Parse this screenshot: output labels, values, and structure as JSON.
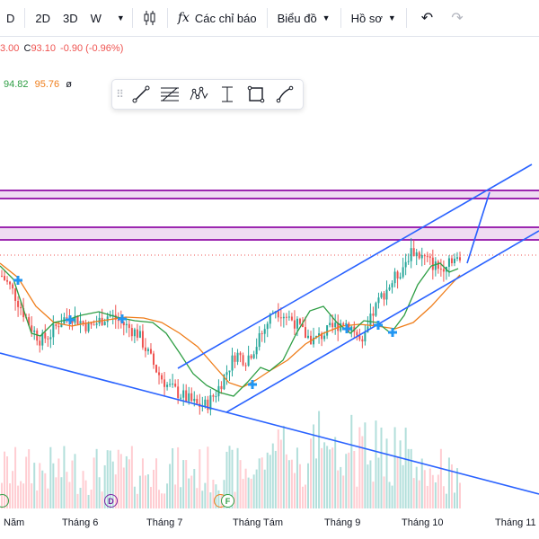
{
  "toolbar": {
    "interval_d": "D",
    "range_2d": "2D",
    "range_3d": "3D",
    "range_w": "W",
    "indicators_icon_label": "fx",
    "indicators_label": "Các chỉ báo",
    "layout_label": "Biểu đồ",
    "profile_label": "Hồ sơ"
  },
  "legend": {
    "ohlc_partial": "3.00",
    "close_prefix": "C",
    "close_value": "93.10",
    "change": "-0.90",
    "change_pct": "(-0.96%)",
    "ma1": "94.82",
    "ma2": "95.76",
    "ma_symbol": "ø"
  },
  "colors": {
    "candle_up": "#26a69a",
    "candle_down": "#ef5350",
    "ma_fast": "#2e9e44",
    "ma_slow": "#ef7d1a",
    "trendline": "#2962ff",
    "zone": "#9c27b0",
    "legend_red": "#ef5350",
    "legend_green": "#2e9e44",
    "legend_orange": "#ef7d1a"
  },
  "drawing_toolbar": {
    "tools": [
      "drag-handle-icon",
      "trend-line-icon",
      "fib-retracement-icon",
      "pattern-icon",
      "projection-icon",
      "rectangle-icon",
      "path-icon"
    ]
  },
  "x_axis": {
    "labels": [
      "Năm",
      "Tháng 6",
      "Tháng 7",
      "Tháng Tám",
      "Tháng 9",
      "Tháng 10",
      "Tháng 11"
    ]
  },
  "events": {
    "dividend_label": "D",
    "earnings_label": "F"
  },
  "chart_data": {
    "type": "candlestick",
    "x_labels": [
      "Năm",
      "Tháng 6",
      "Tháng 7",
      "Tháng Tám",
      "Tháng 9",
      "Tháng 10",
      "Tháng 11"
    ],
    "legend_values": {
      "close": 93.1,
      "change": -0.9,
      "change_pct": -0.96,
      "ma1": 94.82,
      "ma2": 95.76
    },
    "close_series_approx": [
      100,
      98,
      95,
      92,
      90,
      91,
      93,
      94,
      93,
      92,
      93,
      94,
      93,
      92,
      91,
      88,
      85,
      83,
      82,
      81,
      80,
      80,
      82,
      85,
      88,
      87,
      89,
      92,
      95,
      94,
      93,
      91,
      90,
      91,
      92,
      93,
      92,
      89,
      94,
      97,
      99,
      101,
      104,
      103,
      102,
      101,
      103,
      102
    ],
    "drawn_objects": [
      "ascending channel",
      "descending trendline",
      "two horizontal zones",
      "projection line"
    ]
  }
}
